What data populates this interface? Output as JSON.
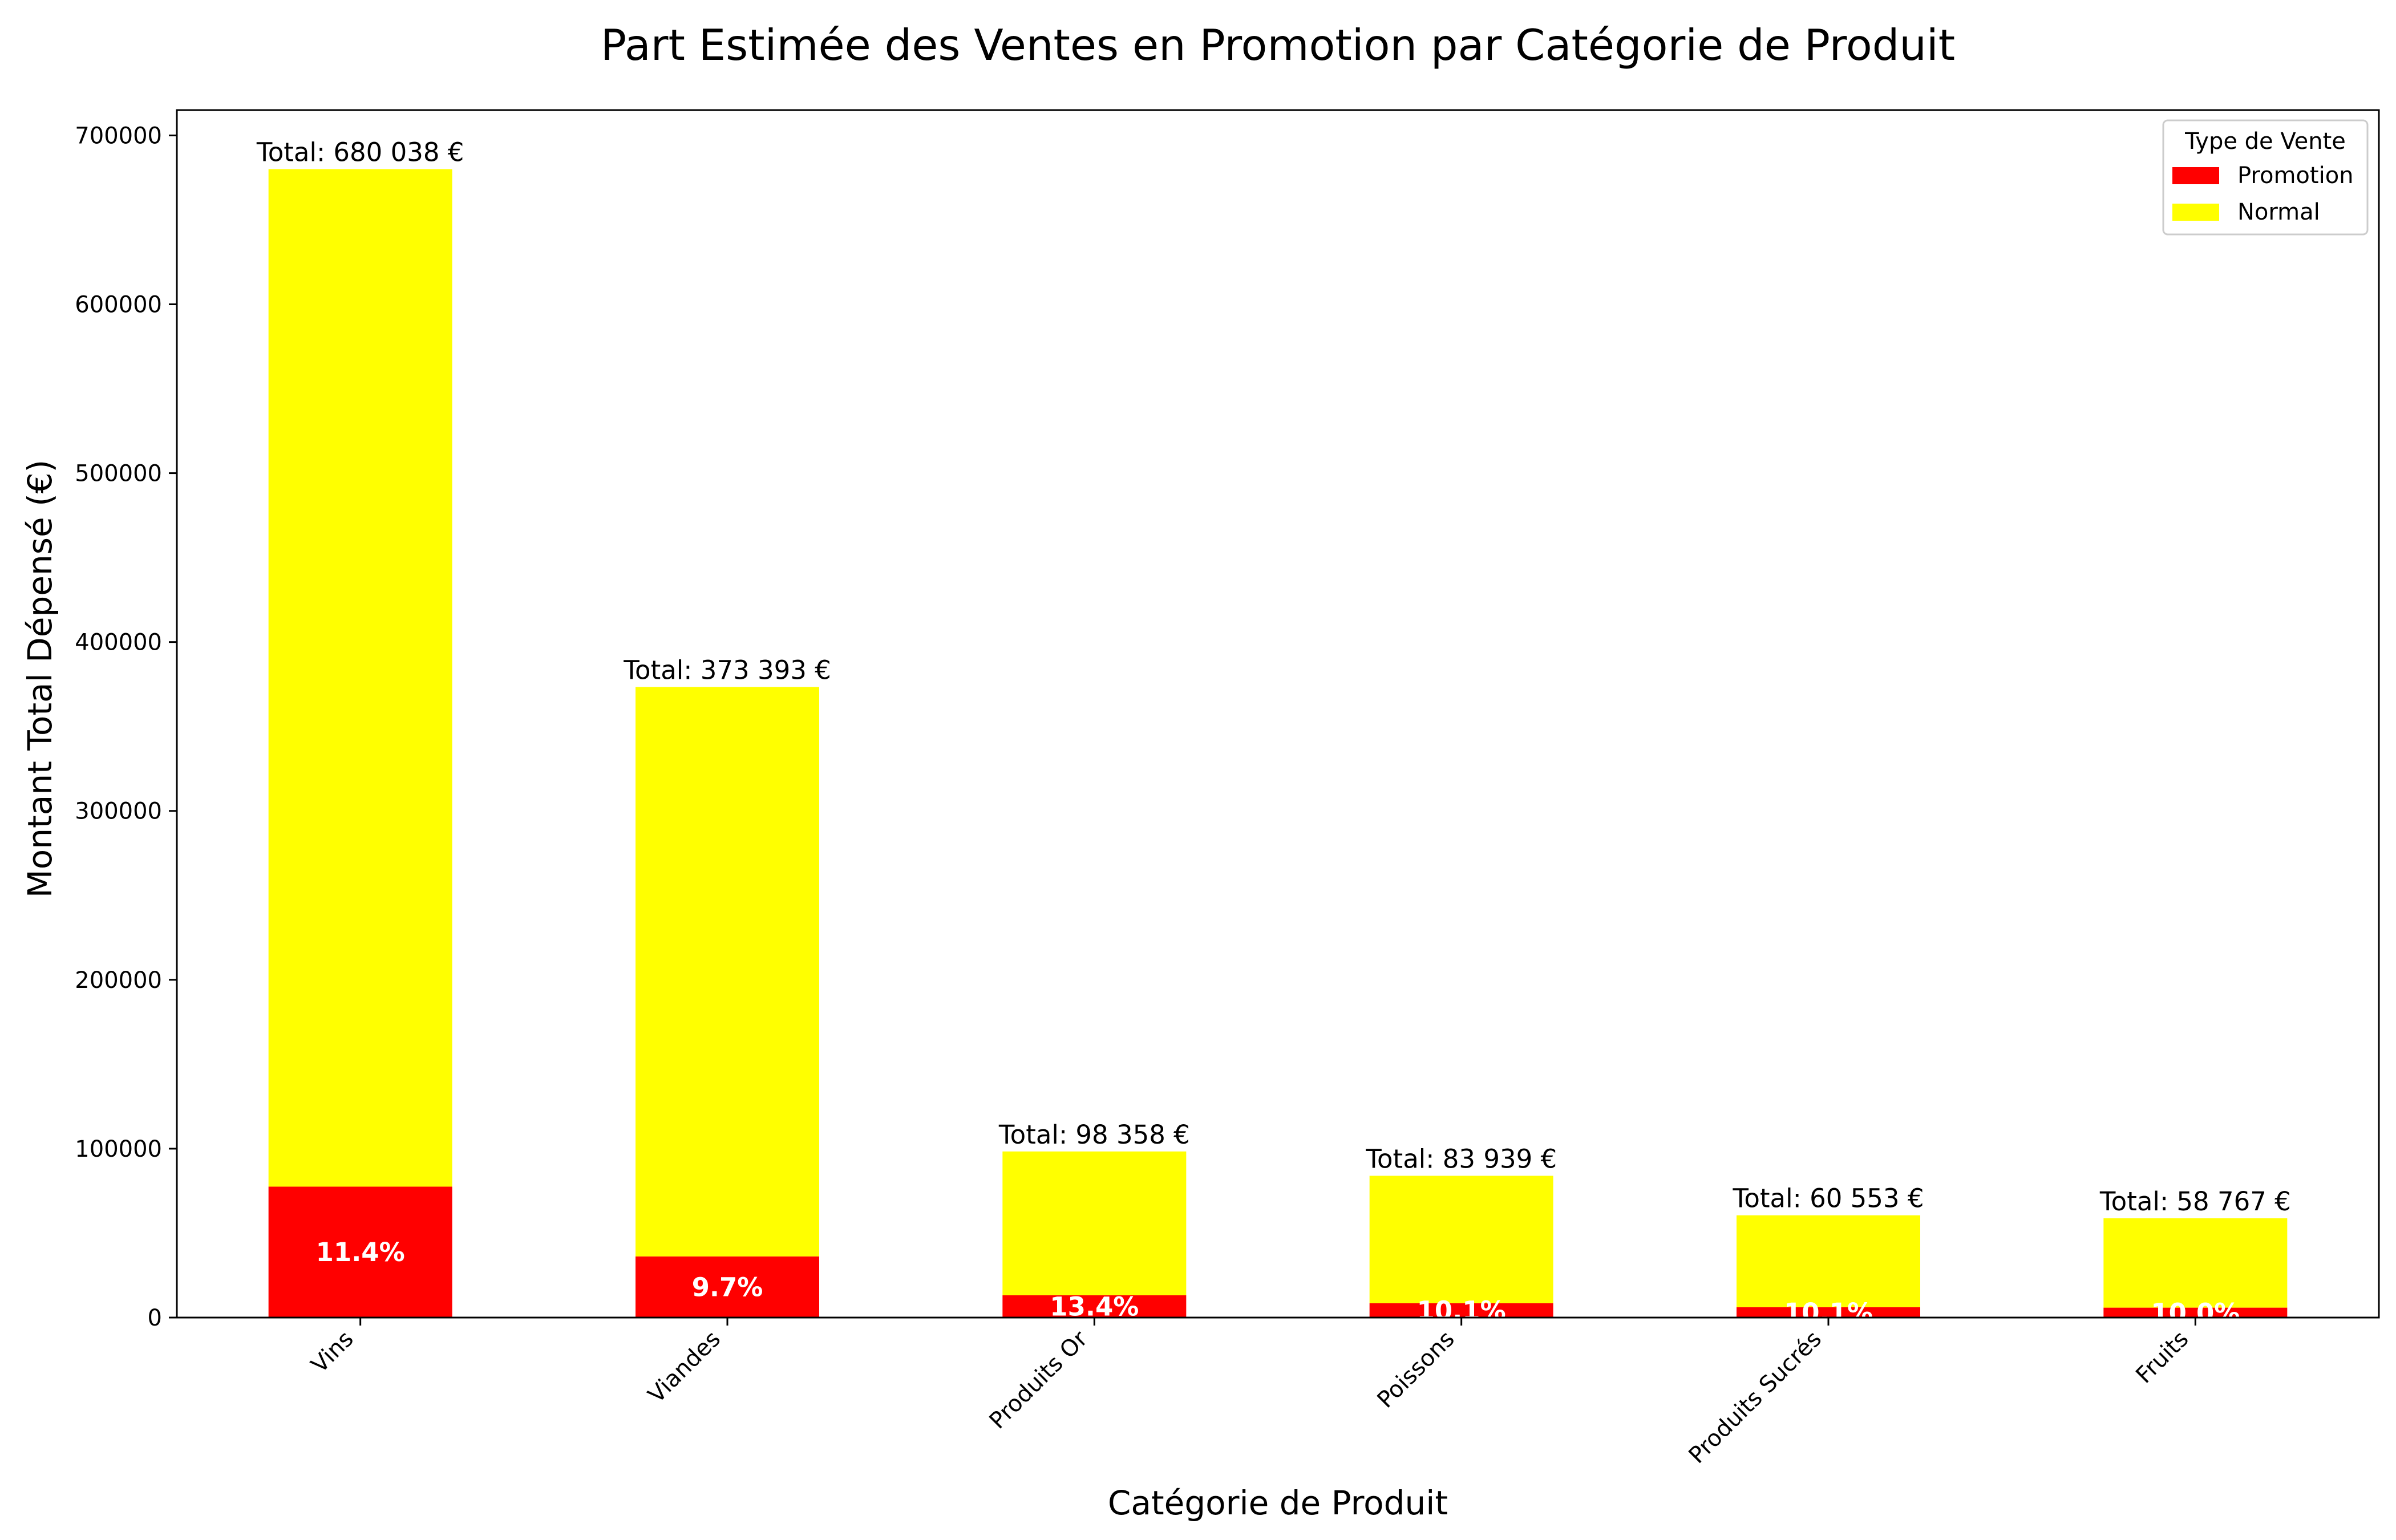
{
  "chart_data": {
    "type": "bar",
    "stacked": true,
    "title": "Part Estimée des Ventes en Promotion par Catégorie de Produit",
    "xlabel": "Catégorie de Produit",
    "ylabel": "Montant Total Dépensé (€)",
    "ylim": [
      0,
      715000
    ],
    "yticks": [
      0,
      100000,
      200000,
      300000,
      400000,
      500000,
      600000,
      700000
    ],
    "ytick_labels": [
      "0",
      "100000",
      "200000",
      "300000",
      "400000",
      "500000",
      "600000",
      "700000"
    ],
    "grid": false,
    "categories": [
      "Vins",
      "Viandes",
      "Produits Or",
      "Poissons",
      "Produits Sucrés",
      "Fruits"
    ],
    "series": [
      {
        "name": "Promotion",
        "color": "#ff0000",
        "values": [
          77524,
          36219,
          13180,
          8478,
          6116,
          5877
        ]
      },
      {
        "name": "Normal",
        "color": "#ffff00",
        "values": [
          602514,
          337174,
          85178,
          75461,
          54437,
          52890
        ]
      }
    ],
    "totals": [
      680038,
      373393,
      98358,
      83939,
      60553,
      58767
    ],
    "total_labels": [
      "Total: 680 038 €",
      "Total: 373 393 €",
      "Total: 98 358 €",
      "Total: 83 939 €",
      "Total: 60 553 €",
      "Total: 58 767 €"
    ],
    "percent_labels": [
      "11.4%",
      "9.7%",
      "13.4%",
      "10.1%",
      "10.1%",
      "10.0%"
    ],
    "legend": {
      "title": "Type de Vente",
      "position": "top-right"
    }
  }
}
